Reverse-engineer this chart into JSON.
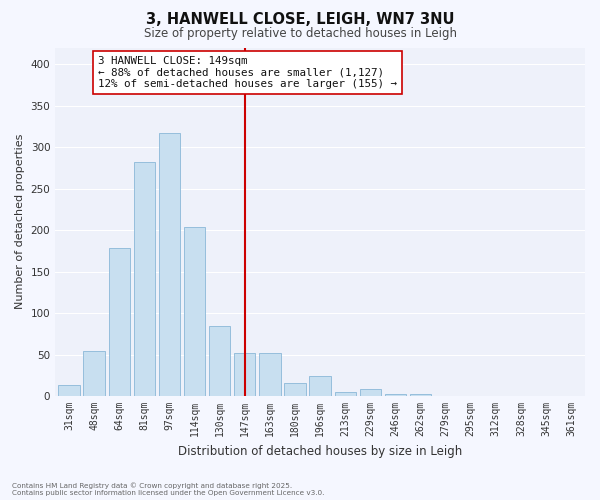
{
  "title": "3, HANWELL CLOSE, LEIGH, WN7 3NU",
  "subtitle": "Size of property relative to detached houses in Leigh",
  "xlabel": "Distribution of detached houses by size in Leigh",
  "ylabel": "Number of detached properties",
  "bar_labels": [
    "31sqm",
    "48sqm",
    "64sqm",
    "81sqm",
    "97sqm",
    "114sqm",
    "130sqm",
    "147sqm",
    "163sqm",
    "180sqm",
    "196sqm",
    "213sqm",
    "229sqm",
    "246sqm",
    "262sqm",
    "279sqm",
    "295sqm",
    "312sqm",
    "328sqm",
    "345sqm",
    "361sqm"
  ],
  "bar_values": [
    13,
    54,
    178,
    282,
    317,
    204,
    84,
    52,
    52,
    16,
    24,
    5,
    9,
    3,
    3,
    0,
    0,
    0,
    0,
    0,
    0
  ],
  "bar_color": "#c8dff0",
  "bar_edge_color": "#8ab8d8",
  "vline_x_idx": 7,
  "vline_color": "#cc0000",
  "annotation_text": "3 HANWELL CLOSE: 149sqm\n← 88% of detached houses are smaller (1,127)\n12% of semi-detached houses are larger (155) →",
  "annotation_box_facecolor": "#ffffff",
  "annotation_box_edgecolor": "#cc0000",
  "ylim": [
    0,
    420
  ],
  "yticks": [
    0,
    50,
    100,
    150,
    200,
    250,
    300,
    350,
    400
  ],
  "fig_facecolor": "#f5f7ff",
  "plot_facecolor": "#eef1fa",
  "grid_color": "#ffffff",
  "title_fontsize": 10.5,
  "subtitle_fontsize": 8.5,
  "ylabel_fontsize": 8,
  "xlabel_fontsize": 8.5,
  "tick_fontsize": 7,
  "footer_line1": "Contains HM Land Registry data © Crown copyright and database right 2025.",
  "footer_line2": "Contains public sector information licensed under the Open Government Licence v3.0."
}
